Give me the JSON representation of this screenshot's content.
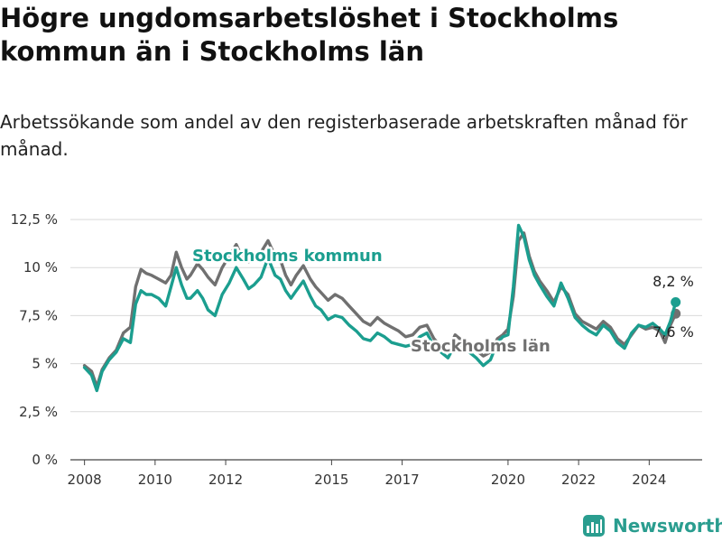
{
  "title": "Högre ungdomsarbetslöshet i Stockholms kommun än i Stockholms län",
  "subtitle": "Arbetssökande som andel av den registerbaserade arbetskraften månad för månad.",
  "brand": "Newsworthy",
  "chart_data": {
    "type": "line",
    "title": "Högre ungdomsarbetslöshet i Stockholms kommun än i Stockholms län",
    "xlabel": "",
    "ylabel": "",
    "ylim": [
      0,
      12.5
    ],
    "xlim": [
      2007.6,
      2025.5
    ],
    "grid": true,
    "y_ticks": [
      {
        "value": 0,
        "label": "0 %"
      },
      {
        "value": 2.5,
        "label": "2,5 %"
      },
      {
        "value": 5,
        "label": "5 %"
      },
      {
        "value": 7.5,
        "label": "7,5 %"
      },
      {
        "value": 10,
        "label": "10 %"
      },
      {
        "value": 12.5,
        "label": "12,5 %"
      }
    ],
    "x_ticks": [
      {
        "value": 2008,
        "label": "2008"
      },
      {
        "value": 2010,
        "label": "2010"
      },
      {
        "value": 2012,
        "label": "2012"
      },
      {
        "value": 2015,
        "label": "2015"
      },
      {
        "value": 2017,
        "label": "2017"
      },
      {
        "value": 2020,
        "label": "2020"
      },
      {
        "value": 2022,
        "label": "2022"
      },
      {
        "value": 2024,
        "label": "2024"
      }
    ],
    "series": [
      {
        "name": "Stockholms län",
        "label": "Stockholms län",
        "color": "#707070",
        "end_label": "7,6 %",
        "x": [
          2008.0,
          2008.2,
          2008.35,
          2008.5,
          2008.7,
          2008.9,
          2009.1,
          2009.3,
          2009.45,
          2009.6,
          2009.75,
          2009.9,
          2010.1,
          2010.3,
          2010.45,
          2010.6,
          2010.75,
          2010.9,
          2011.0,
          2011.2,
          2011.35,
          2011.5,
          2011.7,
          2011.9,
          2012.1,
          2012.3,
          2012.5,
          2012.65,
          2012.8,
          2013.0,
          2013.2,
          2013.4,
          2013.55,
          2013.7,
          2013.85,
          2014.0,
          2014.2,
          2014.4,
          2014.55,
          2014.7,
          2014.9,
          2015.1,
          2015.3,
          2015.5,
          2015.7,
          2015.9,
          2016.1,
          2016.3,
          2016.5,
          2016.7,
          2016.9,
          2017.1,
          2017.3,
          2017.5,
          2017.7,
          2017.9,
          2018.1,
          2018.3,
          2018.5,
          2018.7,
          2018.9,
          2019.1,
          2019.3,
          2019.5,
          2019.7,
          2019.85,
          2020.0,
          2020.15,
          2020.3,
          2020.45,
          2020.6,
          2020.75,
          2020.9,
          2021.1,
          2021.3,
          2021.5,
          2021.7,
          2021.9,
          2022.1,
          2022.3,
          2022.5,
          2022.7,
          2022.9,
          2023.1,
          2023.3,
          2023.5,
          2023.7,
          2023.9,
          2024.1,
          2024.3,
          2024.45,
          2024.6,
          2024.75
        ],
        "values": [
          4.9,
          4.6,
          3.8,
          4.7,
          5.3,
          5.7,
          6.6,
          6.9,
          9.0,
          9.9,
          9.7,
          9.6,
          9.4,
          9.2,
          9.6,
          10.8,
          10.0,
          9.4,
          9.6,
          10.2,
          9.9,
          9.5,
          9.1,
          10.0,
          10.6,
          11.2,
          10.4,
          10.3,
          10.5,
          10.8,
          11.4,
          10.6,
          10.4,
          9.6,
          9.1,
          9.6,
          10.1,
          9.4,
          9.0,
          8.7,
          8.3,
          8.6,
          8.4,
          8.0,
          7.6,
          7.2,
          7.0,
          7.4,
          7.1,
          6.9,
          6.7,
          6.4,
          6.5,
          6.9,
          7.0,
          6.3,
          5.9,
          5.6,
          6.5,
          6.2,
          6.0,
          5.7,
          5.4,
          5.6,
          6.3,
          6.5,
          6.8,
          8.5,
          11.4,
          11.8,
          10.6,
          9.8,
          9.3,
          8.8,
          8.2,
          9.0,
          8.6,
          7.6,
          7.2,
          7.0,
          6.8,
          7.2,
          6.9,
          6.3,
          6.0,
          6.5,
          7.0,
          6.8,
          6.9,
          6.7,
          6.1,
          7.0,
          7.6
        ]
      },
      {
        "name": "Stockholms kommun",
        "label": "Stockholms kommun",
        "color": "#1b9e8f",
        "end_label": "8,2 %",
        "x": [
          2008.0,
          2008.2,
          2008.35,
          2008.5,
          2008.7,
          2008.9,
          2009.1,
          2009.3,
          2009.45,
          2009.6,
          2009.75,
          2009.9,
          2010.1,
          2010.3,
          2010.45,
          2010.6,
          2010.75,
          2010.9,
          2011.0,
          2011.2,
          2011.35,
          2011.5,
          2011.7,
          2011.9,
          2012.1,
          2012.3,
          2012.5,
          2012.65,
          2012.8,
          2013.0,
          2013.2,
          2013.4,
          2013.55,
          2013.7,
          2013.85,
          2014.0,
          2014.2,
          2014.4,
          2014.55,
          2014.7,
          2014.9,
          2015.1,
          2015.3,
          2015.5,
          2015.7,
          2015.9,
          2016.1,
          2016.3,
          2016.5,
          2016.7,
          2016.9,
          2017.1,
          2017.3,
          2017.5,
          2017.7,
          2017.9,
          2018.1,
          2018.3,
          2018.5,
          2018.7,
          2018.9,
          2019.1,
          2019.3,
          2019.5,
          2019.7,
          2019.85,
          2020.0,
          2020.15,
          2020.3,
          2020.45,
          2020.6,
          2020.75,
          2020.9,
          2021.1,
          2021.3,
          2021.5,
          2021.7,
          2021.9,
          2022.1,
          2022.3,
          2022.5,
          2022.7,
          2022.9,
          2023.1,
          2023.3,
          2023.5,
          2023.7,
          2023.9,
          2024.1,
          2024.3,
          2024.45,
          2024.6,
          2024.75
        ],
        "values": [
          4.8,
          4.4,
          3.6,
          4.6,
          5.2,
          5.6,
          6.3,
          6.1,
          8.1,
          8.8,
          8.6,
          8.6,
          8.4,
          8.0,
          9.0,
          10.0,
          9.1,
          8.4,
          8.4,
          8.8,
          8.4,
          7.8,
          7.5,
          8.6,
          9.2,
          10.0,
          9.4,
          8.9,
          9.1,
          9.5,
          10.5,
          9.6,
          9.4,
          8.8,
          8.4,
          8.8,
          9.3,
          8.5,
          8.0,
          7.8,
          7.3,
          7.5,
          7.4,
          7.0,
          6.7,
          6.3,
          6.2,
          6.6,
          6.4,
          6.1,
          6.0,
          5.9,
          6.0,
          6.4,
          6.6,
          5.9,
          5.6,
          5.3,
          6.0,
          5.8,
          5.6,
          5.3,
          4.9,
          5.2,
          6.1,
          6.4,
          6.5,
          9.0,
          12.2,
          11.6,
          10.4,
          9.6,
          9.1,
          8.5,
          8.0,
          9.2,
          8.4,
          7.4,
          7.0,
          6.7,
          6.5,
          7.0,
          6.7,
          6.1,
          5.8,
          6.6,
          7.0,
          6.9,
          7.1,
          6.8,
          6.5,
          7.2,
          8.2
        ]
      }
    ]
  }
}
